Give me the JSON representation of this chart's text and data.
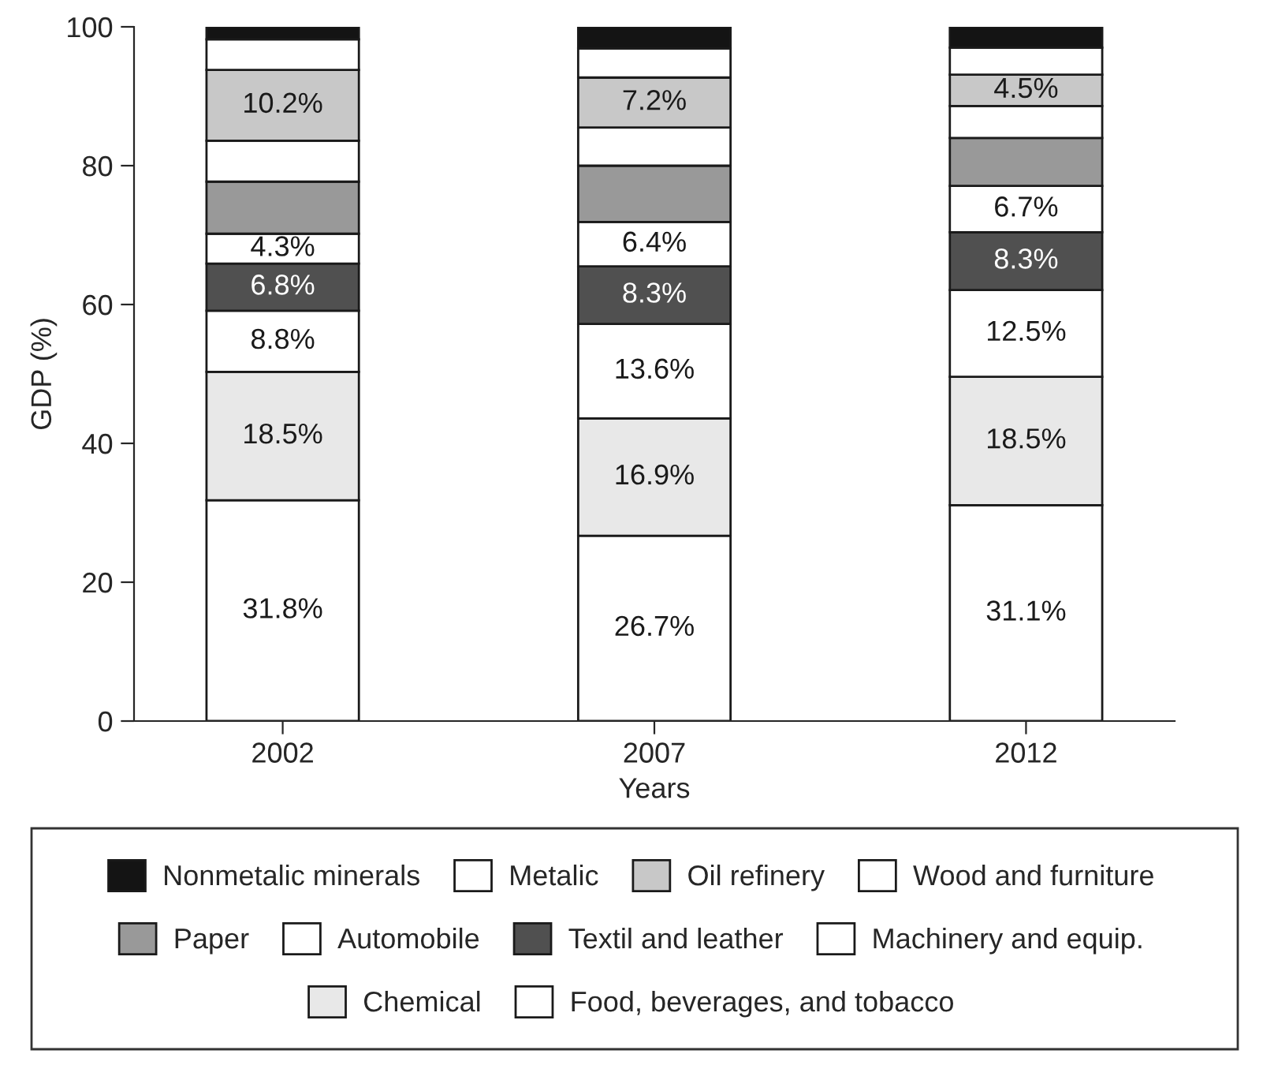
{
  "chart_data": {
    "type": "bar",
    "stacked": true,
    "xlabel": "Years",
    "ylabel": "GDP (%)",
    "categories": [
      "2002",
      "2007",
      "2012"
    ],
    "ylim": [
      0,
      100
    ],
    "yticks": [
      0,
      20,
      40,
      60,
      80,
      100
    ],
    "grid": false,
    "legend": "bottom",
    "series": [
      {
        "name": "Food, beverages, and tobacco",
        "color": "#ffffff",
        "values": [
          31.8,
          26.7,
          31.1
        ],
        "value_labels": [
          "31.8%",
          "26.7%",
          "31.1%"
        ]
      },
      {
        "name": "Chemical",
        "color": "#e8e8e8",
        "values": [
          18.5,
          16.9,
          18.5
        ],
        "value_labels": [
          "18.5%",
          "16.9%",
          "18.5%"
        ]
      },
      {
        "name": "Machinery and equip.",
        "color": "#ffffff",
        "values": [
          8.8,
          13.6,
          12.5
        ],
        "value_labels": [
          "8.8%",
          "13.6%",
          "12.5%"
        ]
      },
      {
        "name": "Textil and leather",
        "color": "#505050",
        "values": [
          6.8,
          8.3,
          8.3
        ],
        "value_labels": [
          "6.8%",
          "8.3%",
          "8.3%"
        ]
      },
      {
        "name": "Automobile",
        "color": "#ffffff",
        "values": [
          4.3,
          6.4,
          6.7
        ],
        "value_labels": [
          "4.3%",
          "6.4%",
          "6.7%"
        ]
      },
      {
        "name": "Paper",
        "color": "#999999",
        "values": [
          7.5,
          8.1,
          6.9
        ]
      },
      {
        "name": "Wood and furniture",
        "color": "#ffffff",
        "values": [
          5.9,
          5.5,
          4.6
        ]
      },
      {
        "name": "Oil refinery",
        "color": "#c8c8c8",
        "values": [
          10.2,
          7.2,
          4.5
        ],
        "value_labels": [
          "10.2%",
          "7.2%",
          "4.5%"
        ]
      },
      {
        "name": "Metalic",
        "color": "#ffffff",
        "values": [
          4.4,
          4.2,
          3.9
        ]
      },
      {
        "name": "Nonmetalic minerals",
        "color": "#141414",
        "values": [
          1.8,
          3.1,
          3.0
        ]
      }
    ]
  }
}
